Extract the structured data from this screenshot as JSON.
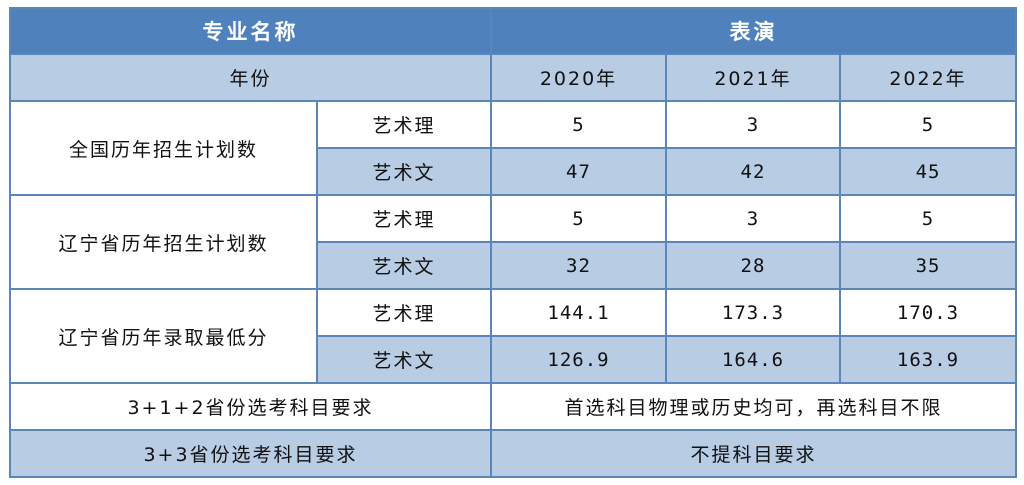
{
  "header": {
    "major_label": "专业名称",
    "major_value": "表演"
  },
  "year_row": {
    "label": "年份",
    "years": [
      "2020年",
      "2021年",
      "2022年"
    ]
  },
  "sections": [
    {
      "title": "全国历年招生计划数",
      "rows": [
        {
          "track": "艺术理",
          "values": [
            "5",
            "3",
            "5"
          ]
        },
        {
          "track": "艺术文",
          "values": [
            "47",
            "42",
            "45"
          ]
        }
      ]
    },
    {
      "title": "辽宁省历年招生计划数",
      "rows": [
        {
          "track": "艺术理",
          "values": [
            "5",
            "3",
            "5"
          ]
        },
        {
          "track": "艺术文",
          "values": [
            "32",
            "28",
            "35"
          ]
        }
      ]
    },
    {
      "title": "辽宁省历年录取最低分",
      "rows": [
        {
          "track": "艺术理",
          "values": [
            "144.1",
            "173.3",
            "170.3"
          ]
        },
        {
          "track": "艺术文",
          "values": [
            "126.9",
            "164.6",
            "163.9"
          ]
        }
      ]
    }
  ],
  "requirements": [
    {
      "label": "3+1+2省份选考科目要求",
      "value": "首选科目物理或历史均可，再选科目不限"
    },
    {
      "label": "3+3省份选考科目要求",
      "value": "不提科目要求"
    }
  ],
  "colors": {
    "header_bg": "#4f81bd",
    "light_row": "#b8cce4",
    "border": "#5b86b8"
  }
}
